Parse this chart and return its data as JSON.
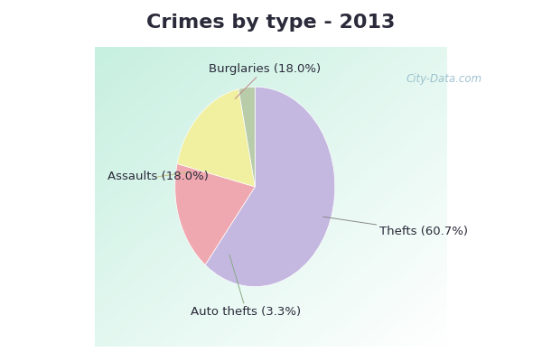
{
  "title": "Crimes by type - 2013",
  "slices": [
    {
      "label": "Thefts (60.7%)",
      "value": 60.7,
      "color": "#c4b8e0"
    },
    {
      "label": "Burglaries (18.0%)",
      "value": 18.0,
      "color": "#f0a8b0"
    },
    {
      "label": "Assaults (18.0%)",
      "value": 18.0,
      "color": "#f0f0a0"
    },
    {
      "label": "Auto thefts (3.3%)",
      "value": 3.3,
      "color": "#b8ccaa"
    }
  ],
  "title_color": "#2a2a3a",
  "title_fontsize": 16,
  "label_fontsize": 9.5,
  "startangle": 90,
  "watermark": "City-Data.com",
  "top_bar_color": "#00e5ff",
  "main_bg_color": "#d8f0e8",
  "border_color": "#00e5ff"
}
